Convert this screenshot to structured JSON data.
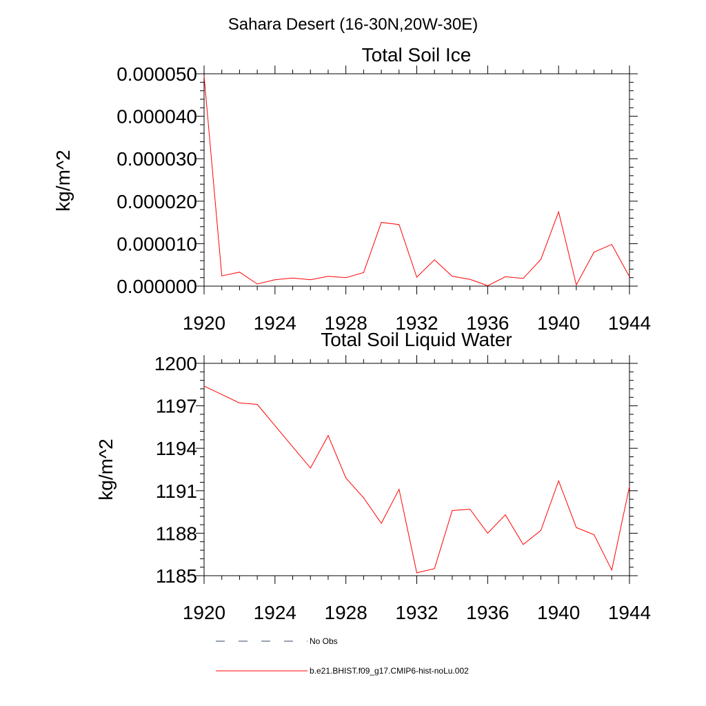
{
  "figure": {
    "suptitle": "Sahara Desert (16-30N,20W-30E)"
  },
  "chart_data": [
    {
      "type": "line",
      "title": "Total Soil Ice",
      "xlabel": "",
      "ylabel": "kg/m^2",
      "xlim": [
        1920,
        1944
      ],
      "ylim": [
        0,
        5e-05
      ],
      "x_ticks": [
        1920,
        1924,
        1928,
        1932,
        1936,
        1940,
        1944
      ],
      "x_tick_labels": [
        "1920",
        "1924",
        "1928",
        "1932",
        "1936",
        "1940",
        "1944"
      ],
      "y_ticks": [
        0,
        1e-05,
        2e-05,
        3e-05,
        4e-05,
        5e-05
      ],
      "y_tick_labels": [
        "0.000000",
        "0.000010",
        "0.000020",
        "0.000030",
        "0.000040",
        "0.000050"
      ],
      "grid": false,
      "series": [
        {
          "name": "b.e21.BHIST.f09_g17.CMIP6-hist-noLu.002",
          "color": "#ff0000",
          "x": [
            1920,
            1921,
            1922,
            1923,
            1924,
            1925,
            1926,
            1927,
            1928,
            1929,
            1930,
            1931,
            1932,
            1933,
            1934,
            1935,
            1936,
            1937,
            1938,
            1939,
            1940,
            1941,
            1942,
            1943,
            1944
          ],
          "values": [
            4.95e-05,
            2.4e-06,
            3.3e-06,
            5e-07,
            1.5e-06,
            1.9e-06,
            1.5e-06,
            2.3e-06,
            2e-06,
            3.2e-06,
            1.5e-05,
            1.45e-05,
            2.1e-06,
            6.2e-06,
            2.3e-06,
            1.6e-06,
            1e-07,
            2.2e-06,
            1.8e-06,
            6.3e-06,
            1.75e-05,
            3e-07,
            8e-06,
            9.8e-06,
            2.2e-06
          ]
        }
      ]
    },
    {
      "type": "line",
      "title": "Total Soil Liquid Water",
      "xlabel": "",
      "ylabel": "kg/m^2",
      "xlim": [
        1920,
        1944
      ],
      "ylim": [
        1185,
        1200
      ],
      "x_ticks": [
        1920,
        1924,
        1928,
        1932,
        1936,
        1940,
        1944
      ],
      "x_tick_labels": [
        "1920",
        "1924",
        "1928",
        "1932",
        "1936",
        "1940",
        "1944"
      ],
      "y_ticks": [
        1185,
        1188,
        1191,
        1194,
        1197,
        1200
      ],
      "y_tick_labels": [
        "1185",
        "1188",
        "1191",
        "1194",
        "1197",
        "1200"
      ],
      "grid": false,
      "series": [
        {
          "name": "b.e21.BHIST.f09_g17.CMIP6-hist-noLu.002",
          "color": "#ff0000",
          "x": [
            1920,
            1921,
            1922,
            1923,
            1924,
            1925,
            1926,
            1927,
            1928,
            1929,
            1930,
            1931,
            1932,
            1933,
            1934,
            1935,
            1936,
            1937,
            1938,
            1939,
            1940,
            1941,
            1942,
            1943,
            1944
          ],
          "values": [
            1198.4,
            1197.8,
            1197.2,
            1197.1,
            1195.6,
            1194.1,
            1192.6,
            1194.9,
            1191.9,
            1190.5,
            1188.7,
            1191.1,
            1185.2,
            1185.5,
            1189.6,
            1189.7,
            1188,
            1189.3,
            1187.2,
            1188.2,
            1191.7,
            1188.4,
            1187.9,
            1185.4,
            1191.3
          ]
        }
      ]
    }
  ],
  "legend": {
    "entries": [
      {
        "label": "No Obs",
        "color": "#334466",
        "style": "dashed"
      },
      {
        "label": "b.e21.BHIST.f09_g17.CMIP6-hist-noLu.002",
        "color": "#ff0000",
        "style": "solid"
      }
    ]
  }
}
